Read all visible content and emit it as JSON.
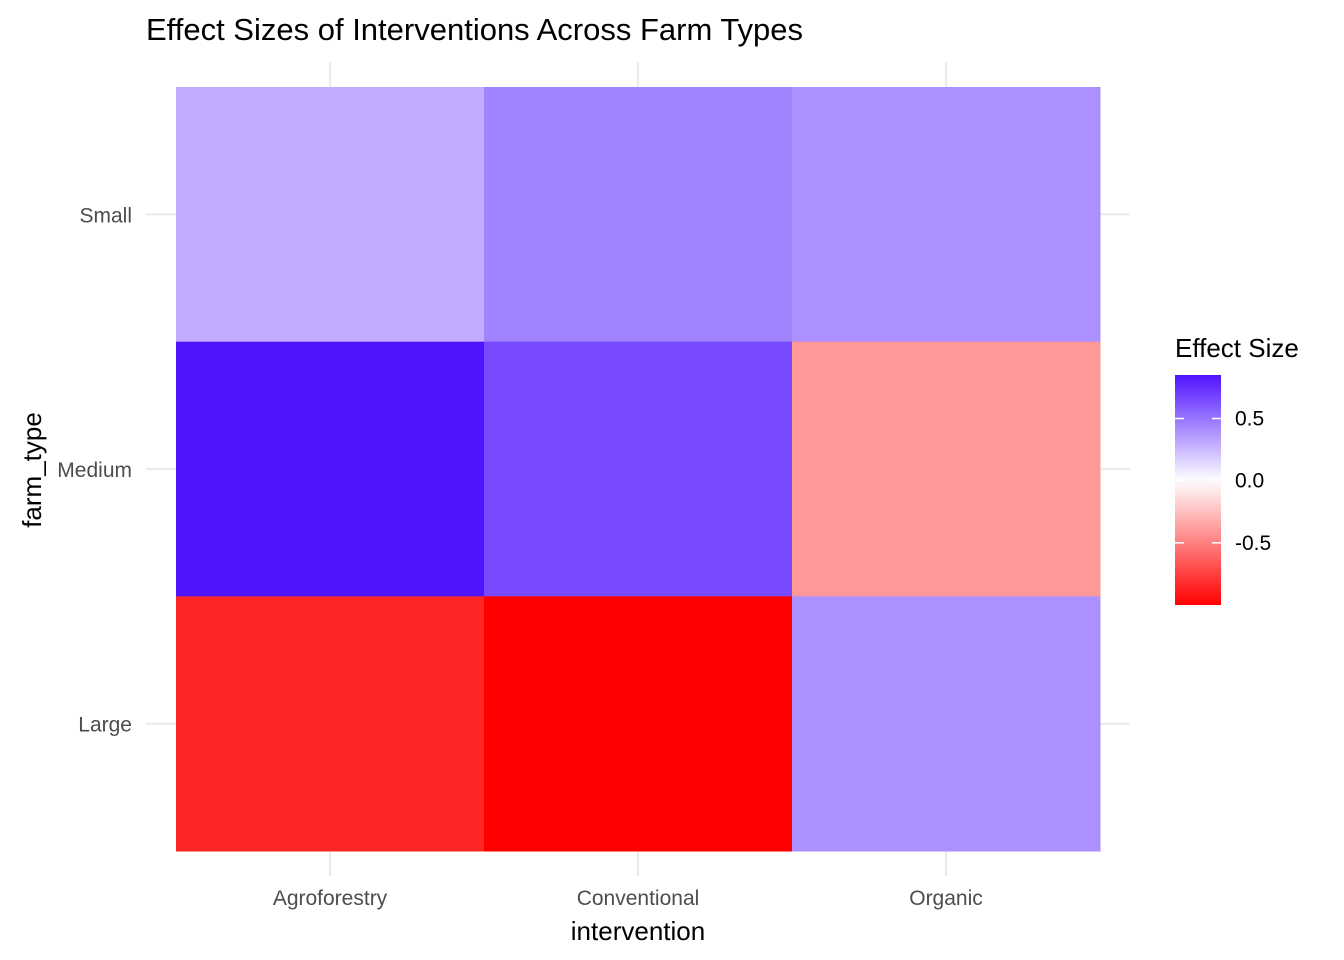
{
  "chart_data": {
    "type": "heatmap",
    "title": "Effect Sizes of Interventions Across Farm Types",
    "xlabel": "intervention",
    "ylabel": "farm_type",
    "x_categories": [
      "Agroforestry",
      "Conventional",
      "Organic"
    ],
    "y_categories": [
      "Small",
      "Medium",
      "Large"
    ],
    "values": [
      [
        0.3,
        0.45,
        0.4
      ],
      [
        0.85,
        0.65,
        -0.4
      ],
      [
        -0.85,
        -1.0,
        0.4
      ]
    ],
    "legend": {
      "title": "Effect Size",
      "position": "right",
      "ticks": [
        0.5,
        0.0,
        -0.5
      ],
      "tick_labels": [
        "0.5",
        "0.0",
        "-0.5"
      ],
      "range": [
        -1.0,
        0.85
      ],
      "low_color": "#ff0000",
      "mid_color": "#ffffff",
      "high_color": "#5014ff"
    },
    "grid": true
  }
}
